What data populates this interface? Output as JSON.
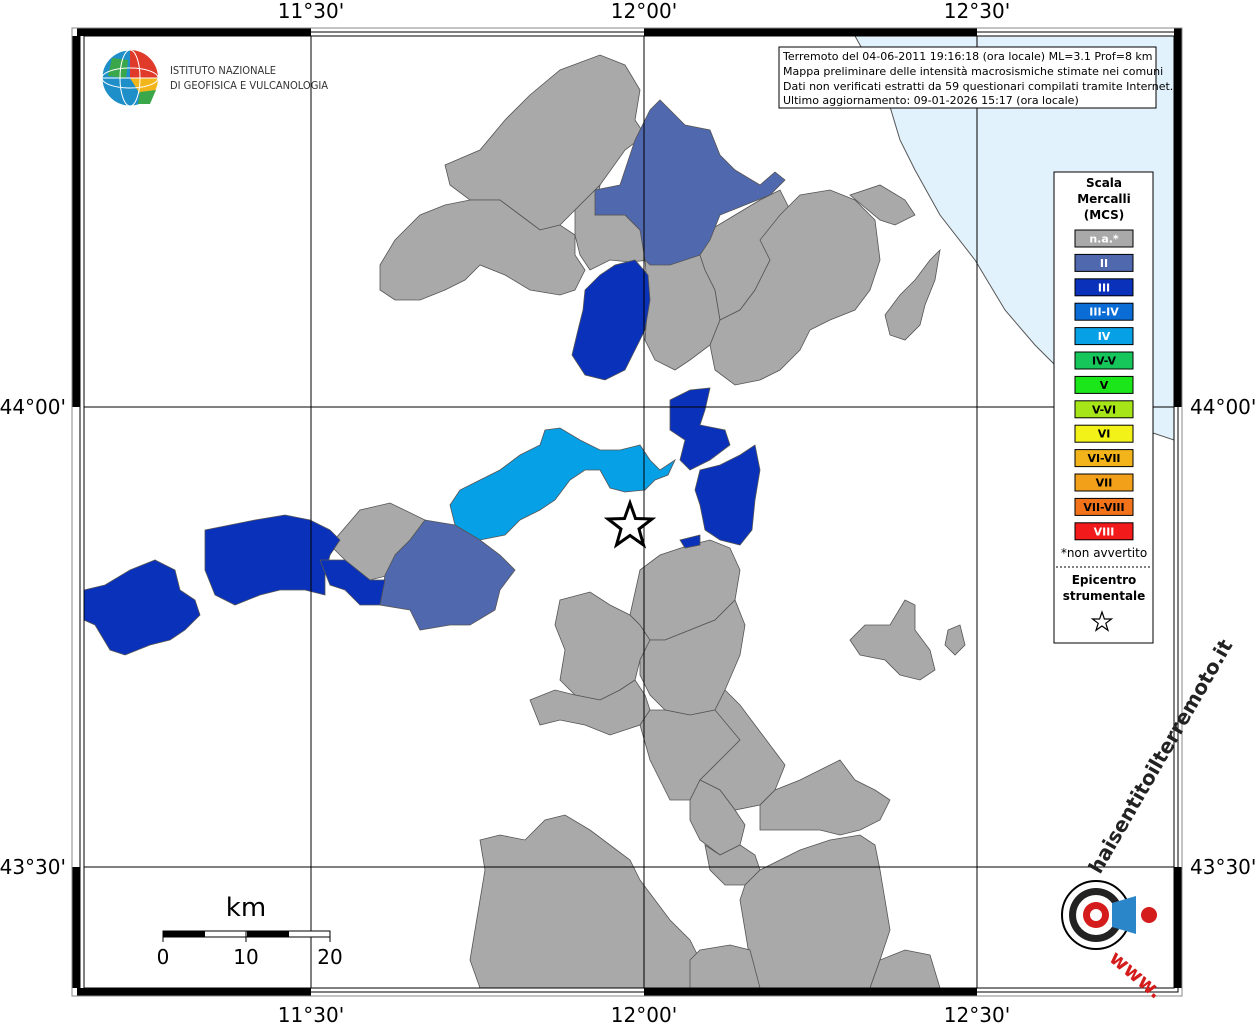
{
  "logo": {
    "line1": "ISTITUTO NAZIONALE",
    "line2": "DI GEOFISICA E VULCANOLOGIA"
  },
  "info": {
    "line1": "Terremoto del 04-06-2011 19:16:18 (ora locale) ML=3.1 Prof=8 km",
    "line2": "Mappa preliminare delle intensità macrosismiche stimate nei comuni",
    "line3": "Dati non verificati estratti da 59 questionari compilati tramite Internet.",
    "line4": "Ultimo aggiornamento: 09-01-2026 15:17 (ora locale)"
  },
  "axes": {
    "top": [
      "11°30'",
      "12°00'",
      "12°30'"
    ],
    "bottom": [
      "11°30'",
      "12°00'",
      "12°30'"
    ],
    "left": [
      "44°00'",
      "43°30'"
    ],
    "right": [
      "44°00'",
      "43°30'"
    ]
  },
  "legend": {
    "title1": "Scala",
    "title2": "Mercalli",
    "title3": "(MCS)",
    "classes": [
      {
        "label": "n.a.*",
        "color": "#a9a9a9",
        "text_color": "#ffffff"
      },
      {
        "label": "II",
        "color": "#5068ae",
        "text_color": "#ffffff"
      },
      {
        "label": "III",
        "color": "#0a31b9",
        "text_color": "#ffffff"
      },
      {
        "label": "III-IV",
        "color": "#0a6cd5",
        "text_color": "#ffffff"
      },
      {
        "label": "IV",
        "color": "#06a0e6",
        "text_color": "#ffffff"
      },
      {
        "label": "IV-V",
        "color": "#17c65a",
        "text_color": "#000000"
      },
      {
        "label": "V",
        "color": "#1ae61a",
        "text_color": "#000000"
      },
      {
        "label": "V-VI",
        "color": "#a6e619",
        "text_color": "#000000"
      },
      {
        "label": "VI",
        "color": "#f2f219",
        "text_color": "#000000"
      },
      {
        "label": "VI-VII",
        "color": "#f2b41a",
        "text_color": "#000000"
      },
      {
        "label": "VII",
        "color": "#f2a01a",
        "text_color": "#000000"
      },
      {
        "label": "VII-VIII",
        "color": "#f27319",
        "text_color": "#000000"
      },
      {
        "label": "VIII",
        "color": "#f21a1a",
        "text_color": "#ffffff"
      }
    ],
    "note": "*non avvertito",
    "epicenter1": "Epicentro",
    "epicenter2": "strumentale"
  },
  "scalebar": {
    "unit": "km",
    "labels": [
      "0",
      "10",
      "20"
    ]
  },
  "hs_logo": {
    "text": "haisentitoilterremoto.it",
    "www": "www."
  }
}
